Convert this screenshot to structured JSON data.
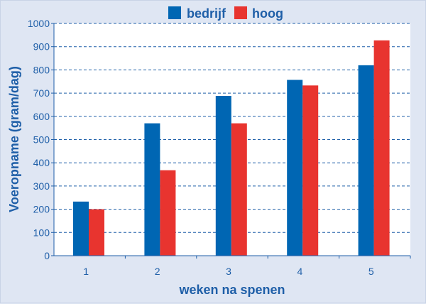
{
  "chart_data": {
    "type": "bar",
    "title": "",
    "xlabel": "weken na spenen",
    "ylabel": "Voeropname (gram/dag)",
    "categories": [
      "1",
      "2",
      "3",
      "4",
      "5"
    ],
    "series": [
      {
        "name": "bedrijf",
        "color": "#0066b3",
        "values": [
          233,
          570,
          688,
          757,
          820
        ]
      },
      {
        "name": "hoog",
        "color": "#e8342f",
        "values": [
          200,
          368,
          570,
          733,
          927
        ]
      }
    ],
    "ylim": [
      0,
      1000
    ],
    "yticks": [
      0,
      100,
      200,
      300,
      400,
      500,
      600,
      700,
      800,
      900,
      1000
    ],
    "grid": true,
    "legend_position": "top-center"
  }
}
